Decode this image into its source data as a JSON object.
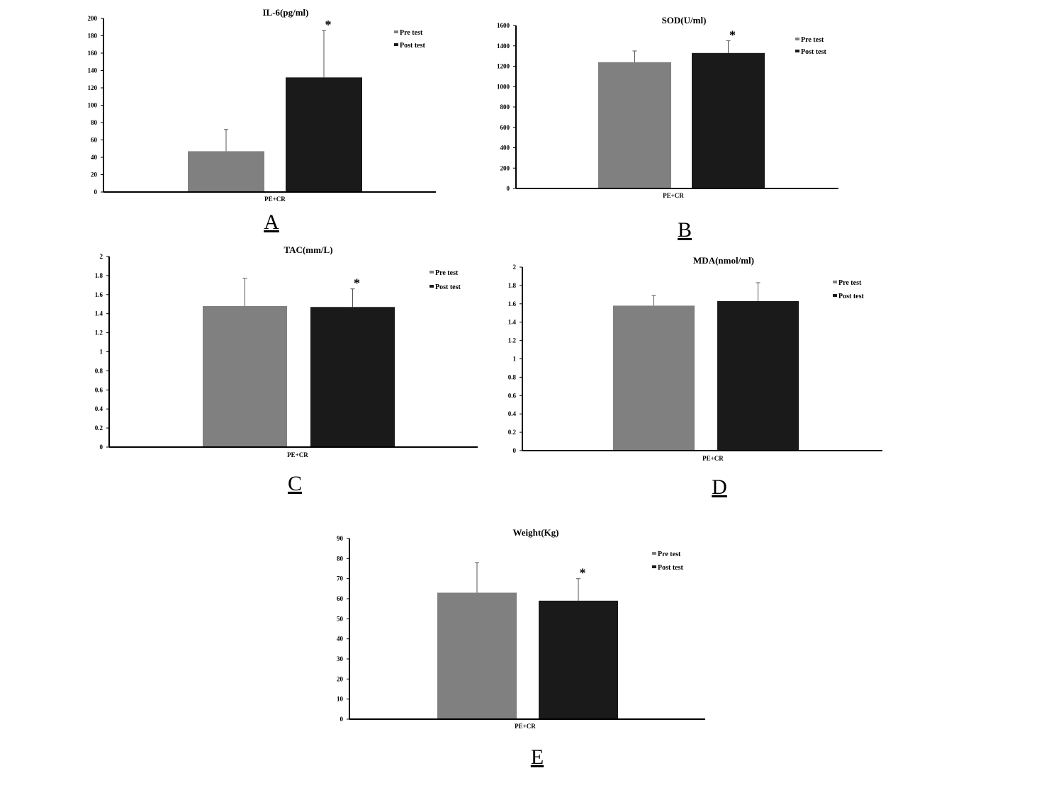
{
  "chart_data": [
    {
      "type": "bar",
      "panel_label": "A",
      "title": "IL-6(pg/ml)",
      "categories": [
        "PE+CR"
      ],
      "series": [
        {
          "name": "Pre test",
          "values": [
            47
          ],
          "error": [
            25
          ],
          "color": "#808080"
        },
        {
          "name": "Post test",
          "values": [
            132
          ],
          "error": [
            54
          ],
          "color": "#1a1a1a"
        }
      ],
      "significance": [
        "",
        "*"
      ],
      "ylim": [
        0,
        200
      ],
      "yticks": [
        0,
        20,
        40,
        60,
        80,
        100,
        120,
        140,
        160,
        180,
        200
      ],
      "ytick_labels": [
        "0",
        "20",
        "40",
        "60",
        "80",
        "100",
        "120",
        "140",
        "160",
        "180",
        "200"
      ],
      "grid": false,
      "legend_position": "top-right"
    },
    {
      "type": "bar",
      "panel_label": "B",
      "title": "SOD(U/ml)",
      "categories": [
        "PE+CR"
      ],
      "series": [
        {
          "name": "Pre test",
          "values": [
            1240
          ],
          "error": [
            110
          ],
          "color": "#808080"
        },
        {
          "name": "Post test",
          "values": [
            1330
          ],
          "error": [
            120
          ],
          "color": "#1a1a1a"
        }
      ],
      "significance": [
        "",
        "*"
      ],
      "ylim": [
        0,
        1600
      ],
      "yticks": [
        0,
        200,
        400,
        600,
        800,
        1000,
        1200,
        1400,
        1600
      ],
      "ytick_labels": [
        "0",
        "200",
        "400",
        "600",
        "800",
        "1000",
        "1200",
        "1400",
        "1600"
      ],
      "grid": false,
      "legend_position": "top-right"
    },
    {
      "type": "bar",
      "panel_label": "C",
      "title": "TAC(mm/L)",
      "categories": [
        "PE+CR"
      ],
      "series": [
        {
          "name": "Pre test",
          "values": [
            1.48
          ],
          "error": [
            0.29
          ],
          "color": "#808080"
        },
        {
          "name": "Post test",
          "values": [
            1.47
          ],
          "error": [
            0.19
          ],
          "color": "#1a1a1a"
        }
      ],
      "significance": [
        "",
        "*"
      ],
      "ylim": [
        0,
        2
      ],
      "yticks": [
        0,
        0.2,
        0.4,
        0.6,
        0.8,
        1,
        1.2,
        1.4,
        1.6,
        1.8,
        2
      ],
      "ytick_labels": [
        "0",
        "0.2",
        "0.4",
        "0.6",
        "0.8",
        "1",
        "1.2",
        "1.4",
        "1.6",
        "1.8",
        "2"
      ],
      "grid": false,
      "legend_position": "top-right"
    },
    {
      "type": "bar",
      "panel_label": "D",
      "title": "MDA(nmol/ml)",
      "categories": [
        "PE+CR"
      ],
      "series": [
        {
          "name": "Pre test",
          "values": [
            1.58
          ],
          "error": [
            0.11
          ],
          "color": "#808080"
        },
        {
          "name": "Post test",
          "values": [
            1.63
          ],
          "error": [
            0.2
          ],
          "color": "#1a1a1a"
        }
      ],
      "significance": [
        "",
        ""
      ],
      "ylim": [
        0,
        2
      ],
      "yticks": [
        0,
        0.2,
        0.4,
        0.6,
        0.8,
        1,
        1.2,
        1.4,
        1.6,
        1.8,
        2
      ],
      "ytick_labels": [
        "0",
        "0.2",
        "0.4",
        "0.6",
        "0.8",
        "1",
        "1.2",
        "1.4",
        "1.6",
        "1.8",
        "2"
      ],
      "grid": false,
      "legend_position": "top-right"
    },
    {
      "type": "bar",
      "panel_label": "E",
      "title": "Weight(Kg)",
      "categories": [
        "PE+CR"
      ],
      "series": [
        {
          "name": "Pre test",
          "values": [
            63
          ],
          "error": [
            15
          ],
          "color": "#808080"
        },
        {
          "name": "Post test",
          "values": [
            59
          ],
          "error": [
            11
          ],
          "color": "#1a1a1a"
        }
      ],
      "significance": [
        "",
        "*"
      ],
      "ylim": [
        0,
        90
      ],
      "yticks": [
        0,
        10,
        20,
        30,
        40,
        50,
        60,
        70,
        80,
        90
      ],
      "ytick_labels": [
        "0",
        "10",
        "20",
        "30",
        "40",
        "50",
        "60",
        "70",
        "80",
        "90"
      ],
      "grid": false,
      "legend_position": "top-right"
    }
  ]
}
